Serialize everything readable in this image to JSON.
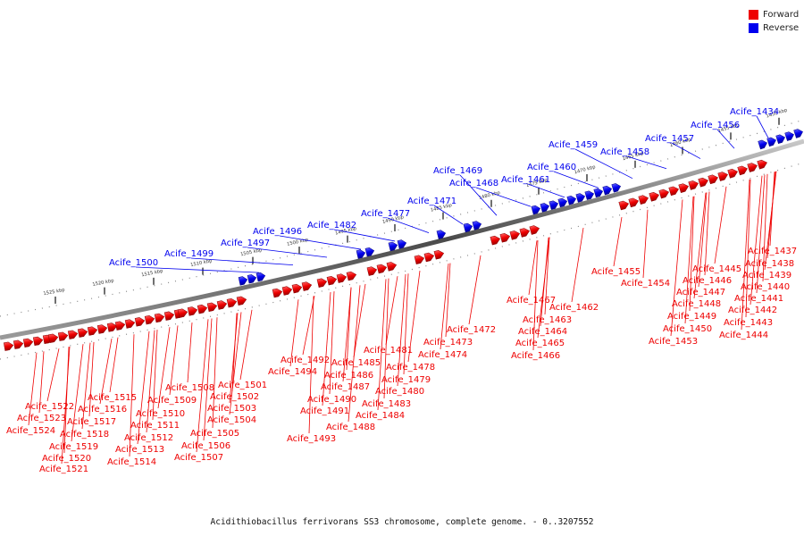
{
  "legend": {
    "forward_label": "Forward",
    "reverse_label": "Reverse",
    "forward_color": "#ee0000",
    "reverse_color": "#0000ee"
  },
  "caption": "Acidithiobacillus ferrivorans SS3 chromosome, complete genome. - 0..3207552",
  "scale_labels": [
    "1525 kbp",
    "1520 kbp",
    "1515 kbp",
    "1510 kbp",
    "1505 kbp",
    "1500 kbp",
    "1495 kbp",
    "1490 kbp",
    "1485 kbp",
    "1480 kbp",
    "1475 kbp",
    "1470 kbp",
    "1465 kbp",
    "1460 kbp",
    "1455 kbp",
    "1450 kbp"
  ],
  "reverse_genes": [
    "Acife_1434",
    "Acife_1456",
    "Acife_1457",
    "Acife_1458",
    "Acife_1459",
    "Acife_1460",
    "Acife_1461",
    "Acife_1468",
    "Acife_1469",
    "Acife_1471",
    "Acife_1477",
    "Acife_1482",
    "Acife_1496",
    "Acife_1497",
    "Acife_1499",
    "Acife_1500"
  ],
  "forward_genes": [
    "Acife_1437",
    "Acife_1438",
    "Acife_1439",
    "Acife_1440",
    "Acife_1441",
    "Acife_1442",
    "Acife_1443",
    "Acife_1444",
    "Acife_1445",
    "Acife_1446",
    "Acife_1447",
    "Acife_1448",
    "Acife_1449",
    "Acife_1450",
    "Acife_1453",
    "Acife_1454",
    "Acife_1455",
    "Acife_1462",
    "Acife_1463",
    "Acife_1464",
    "Acife_1465",
    "Acife_1466",
    "Acife_1467",
    "Acife_1472",
    "Acife_1473",
    "Acife_1474",
    "Acife_1478",
    "Acife_1479",
    "Acife_1480",
    "Acife_1481",
    "Acife_1483",
    "Acife_1484",
    "Acife_1485",
    "Acife_1486",
    "Acife_1487",
    "Acife_1488",
    "Acife_1490",
    "Acife_1491",
    "Acife_1492",
    "Acife_1493",
    "Acife_1494",
    "Acife_1501",
    "Acife_1502",
    "Acife_1503",
    "Acife_1504",
    "Acife_1505",
    "Acife_1506",
    "Acife_1507",
    "Acife_1508",
    "Acife_1509",
    "Acife_1510",
    "Acife_1511",
    "Acife_1512",
    "Acife_1513",
    "Acife_1514",
    "Acife_1515",
    "Acife_1516",
    "Acife_1517",
    "Acife_1518",
    "Acife_1519",
    "Acife_1520",
    "Acife_1521",
    "Acife_1522",
    "Acife_1523",
    "Acife_1524"
  ]
}
